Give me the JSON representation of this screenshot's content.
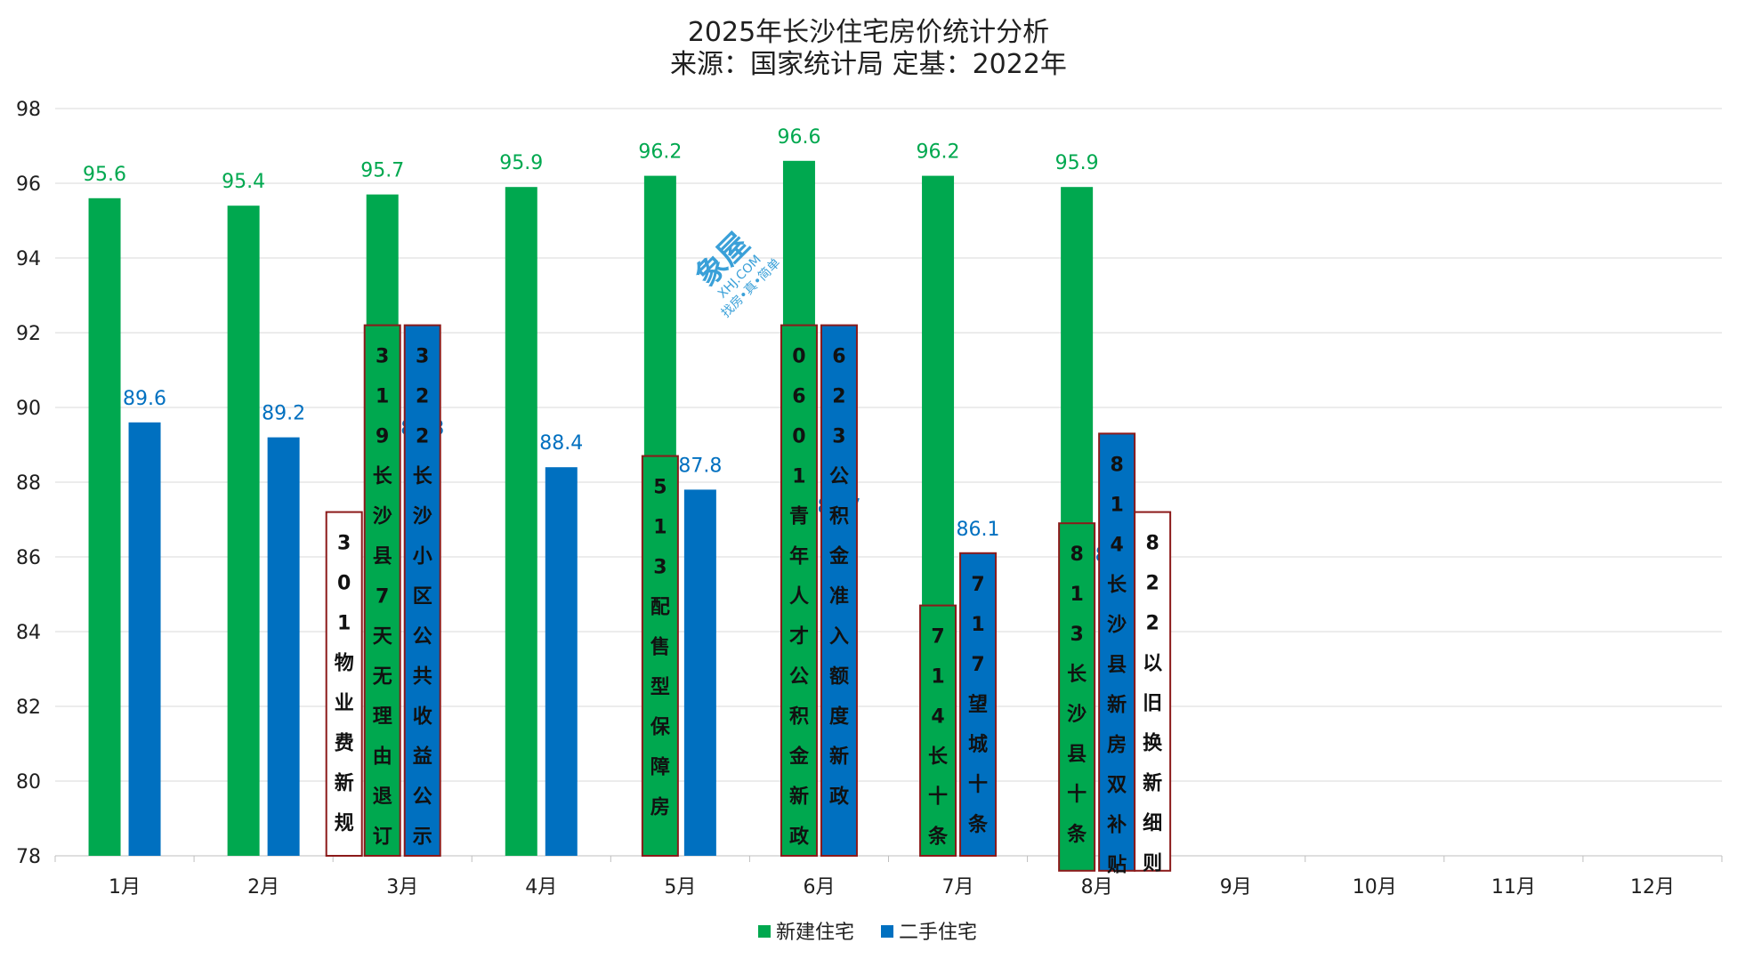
{
  "chart_data": {
    "type": "bar",
    "title": "2025年长沙住宅房价统计分析",
    "subtitle": "来源：国家统计局 定基：2022年",
    "categories": [
      "1月",
      "2月",
      "3月",
      "4月",
      "5月",
      "6月",
      "7月",
      "8月",
      "9月",
      "10月",
      "11月",
      "12月"
    ],
    "series": [
      {
        "name": "新建住宅",
        "color": "#00a84f",
        "values": [
          95.6,
          95.4,
          95.7,
          95.9,
          96.2,
          96.6,
          96.2,
          95.9,
          null,
          null,
          null,
          null
        ]
      },
      {
        "name": "二手住宅",
        "color": "#0070c0",
        "values": [
          89.6,
          89.2,
          88.8,
          88.4,
          87.8,
          86.7,
          86.1,
          85.4,
          null,
          null,
          null,
          null
        ]
      }
    ],
    "ylim": [
      78,
      98
    ],
    "yticks": [
      78,
      80,
      82,
      84,
      86,
      88,
      90,
      92,
      94,
      96,
      98
    ],
    "grid": true,
    "legend_position": "bottom",
    "annotations": [
      {
        "text": "301物业费新规",
        "month": 3,
        "slot": "left-outer",
        "ymin": 78,
        "ymax": 87.2,
        "fill": "#ffffff",
        "textColor": "#111111"
      },
      {
        "text": "319长沙县7天无理由退订",
        "month": 3,
        "slot": "new",
        "ymin": 78,
        "ymax": 92.2,
        "fill": "#00a84f",
        "textColor": "#111111"
      },
      {
        "text": "322长沙小区公共收益公示",
        "month": 3,
        "slot": "second",
        "ymin": 78,
        "ymax": 92.2,
        "fill": "#0070c0",
        "textColor": "#111111"
      },
      {
        "text": "513配售型保障房",
        "month": 5,
        "slot": "new",
        "ymin": 78,
        "ymax": 88.7,
        "fill": "#00a84f",
        "textColor": "#111111"
      },
      {
        "text": "0601青年人才公积金新政",
        "month": 6,
        "slot": "new",
        "ymin": 78,
        "ymax": 92.2,
        "fill": "#00a84f",
        "textColor": "#111111"
      },
      {
        "text": "623公积金准入额度新政",
        "month": 6,
        "slot": "second",
        "ymin": 78,
        "ymax": 92.2,
        "fill": "#0070c0",
        "textColor": "#111111"
      },
      {
        "text": "714长十条",
        "month": 7,
        "slot": "new",
        "ymin": 78,
        "ymax": 84.7,
        "fill": "#00a84f",
        "textColor": "#111111"
      },
      {
        "text": "717望城十条",
        "month": 7,
        "slot": "second",
        "ymin": 78,
        "ymax": 86.1,
        "fill": "#0070c0",
        "textColor": "#111111"
      },
      {
        "text": "813长沙县十条",
        "month": 8,
        "slot": "new",
        "ymin": 77.6,
        "ymax": 86.9,
        "fill": "#00a84f",
        "textColor": "#111111"
      },
      {
        "text": "814长沙县新房双补贴",
        "month": 8,
        "slot": "second",
        "ymin": 77.6,
        "ymax": 89.3,
        "fill": "#0070c0",
        "textColor": "#111111"
      },
      {
        "text": "822以旧换新细则",
        "month": 8,
        "slot": "right-outer",
        "ymin": 77.6,
        "ymax": 87.2,
        "fill": "#ffffff",
        "textColor": "#111111"
      }
    ],
    "watermark": {
      "main": "象屋",
      "domain": "XHJ.COM",
      "slogan": "找房•真•简单"
    }
  }
}
